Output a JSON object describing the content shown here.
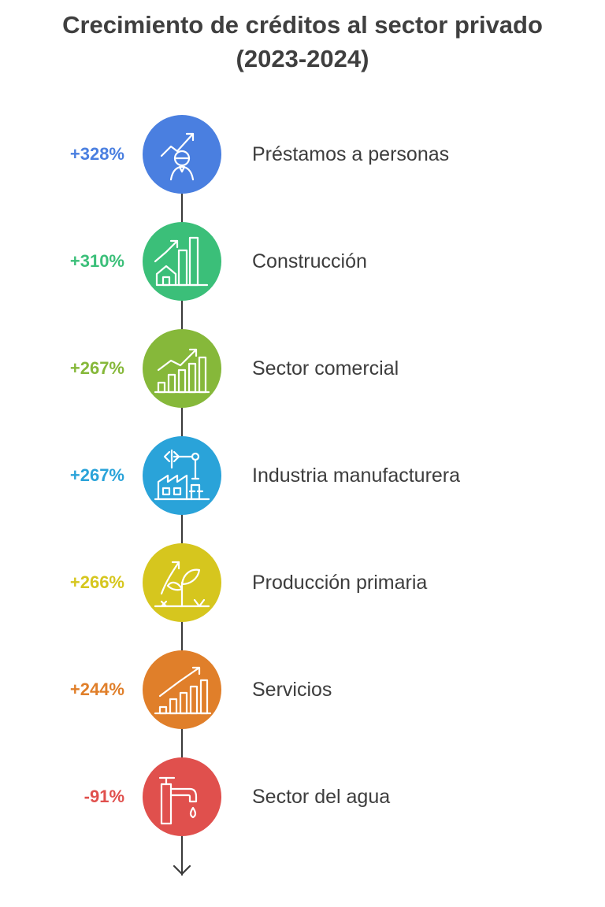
{
  "title_line1": "Crecimiento de créditos al sector privado",
  "title_line2": "(2023-2024)",
  "items": [
    {
      "value": "+328%",
      "label": "Préstamos a personas",
      "color": "#4a7fe0",
      "icon": "person-growth-icon"
    },
    {
      "value": "+310%",
      "label": "Construcción",
      "color": "#3bbf79",
      "icon": "house-chart-icon"
    },
    {
      "value": "+267%",
      "label": "Sector comercial",
      "color": "#86b83a",
      "icon": "bar-chart-growth-icon"
    },
    {
      "value": "+267%",
      "label": "Industria manufacturera",
      "color": "#2aa3d9",
      "icon": "factory-robot-arm-icon"
    },
    {
      "value": "+266%",
      "label": "Producción primaria",
      "color": "#d6c61e",
      "icon": "sprout-growth-icon"
    },
    {
      "value": "+244%",
      "label": "Servicios",
      "color": "#e07f2a",
      "icon": "bar-chart-growth-icon"
    },
    {
      "value": "-91%",
      "label": "Sector del agua",
      "color": "#e0504d",
      "icon": "water-faucet-icon"
    }
  ]
}
